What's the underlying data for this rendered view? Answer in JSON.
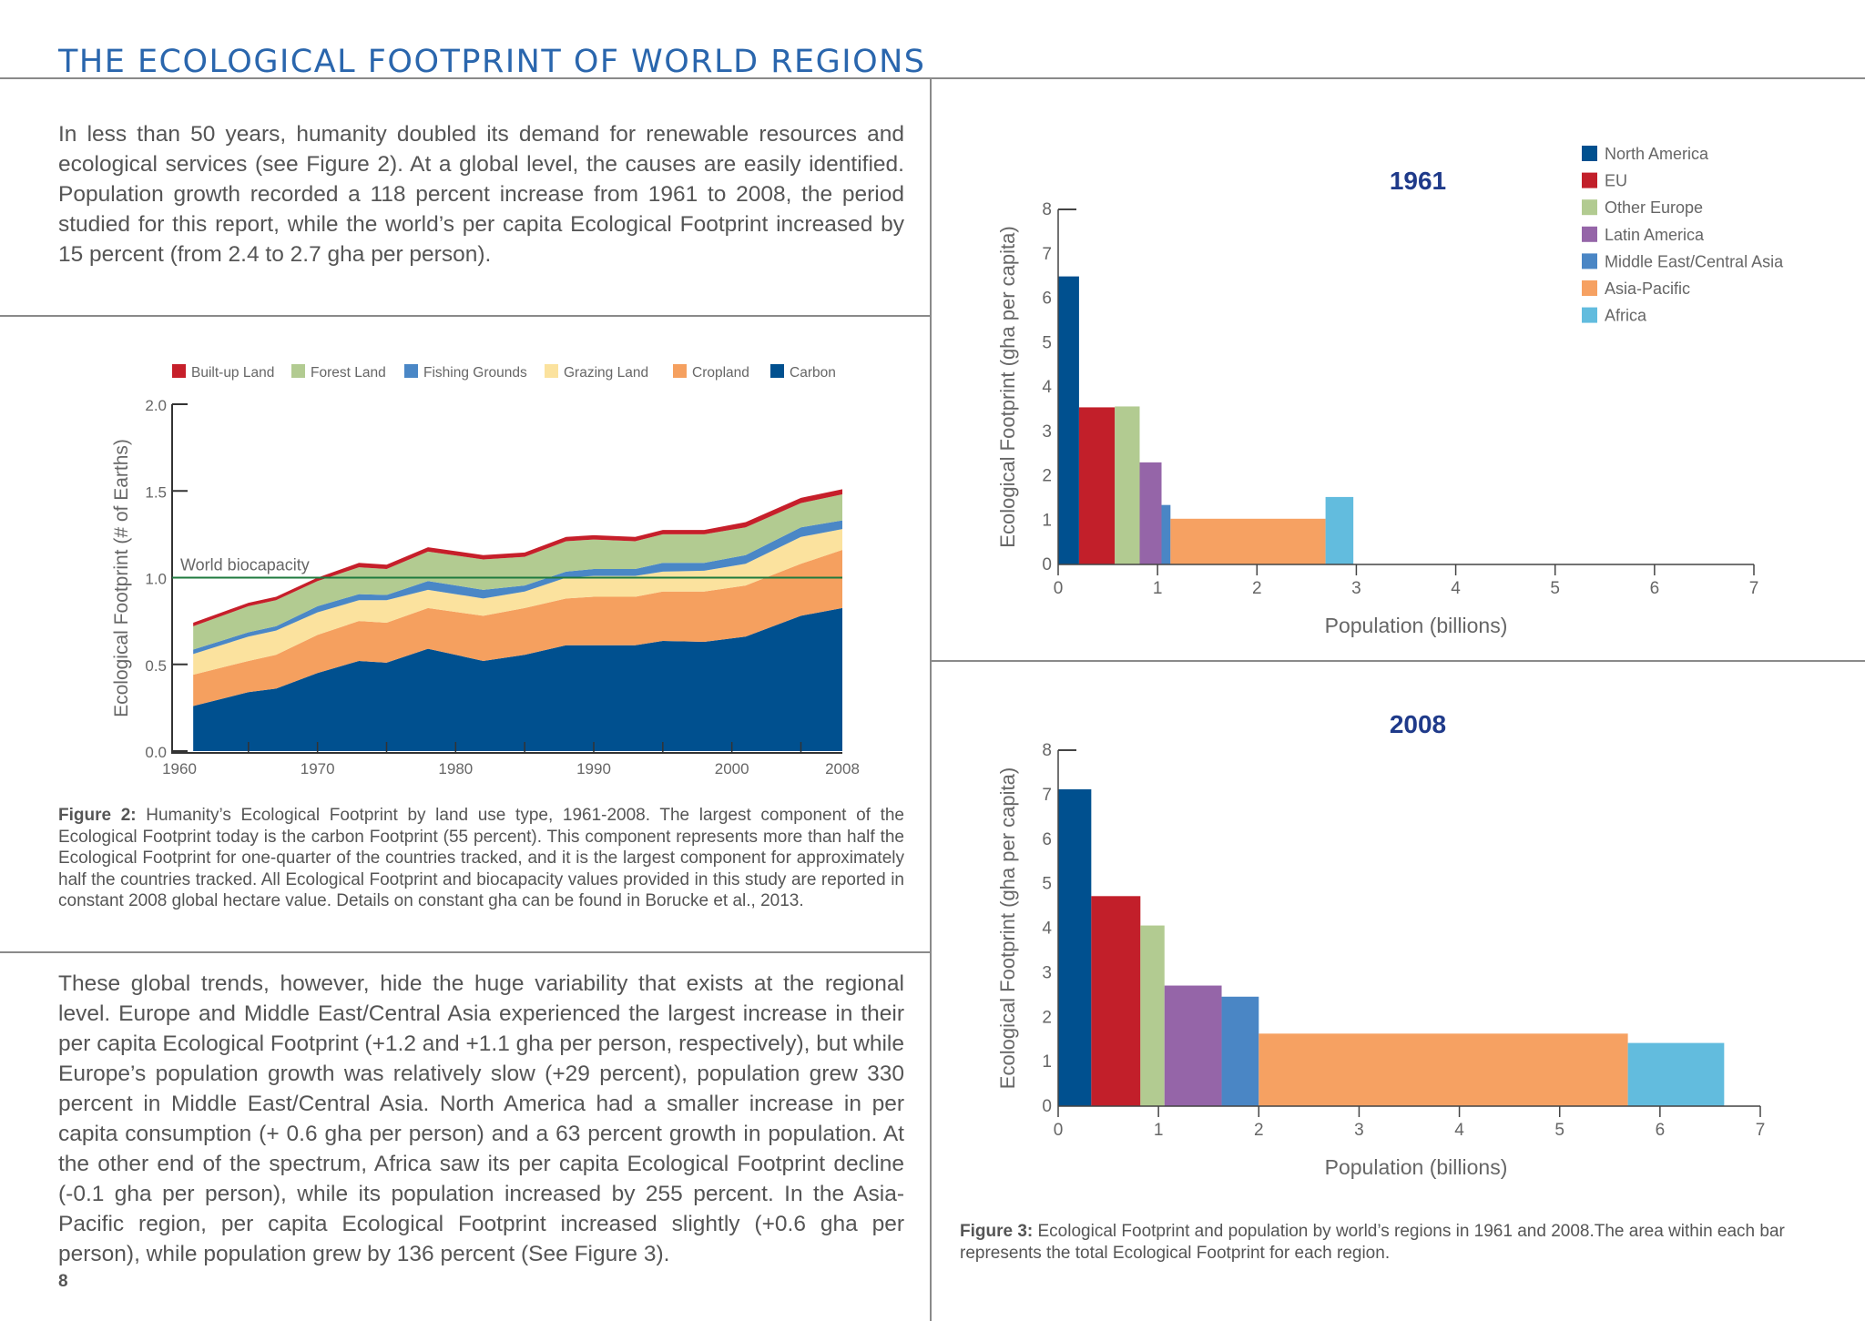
{
  "page": {
    "title": "THE ECOLOGICAL FOOTPRINT OF WORLD REGIONS",
    "page_number": "8",
    "paragraph_1": "In less than 50 years, humanity doubled its demand for renewable resources and ecological services (see Figure 2). At a global level, the causes are easily identified. Population growth recorded a 118 percent increase from 1961 to 2008, the period studied for this report, while the world’s per capita Ecological Footprint increased by 15 percent (from 2.4 to 2.7 gha per person).",
    "paragraph_2": "These global trends, however, hide the huge variability that exists at the regional level. Europe and Middle East/Central Asia experienced the largest increase in their per capita Ecological Footprint (+1.2 and +1.1 gha per person, respectively), but while Europe’s population growth was relatively slow (+29 percent), population grew 330 percent in Middle East/Central Asia. North America had a smaller increase in per capita consumption (+ 0.6 gha per person) and a 63 percent growth in population. At the other end of the spectrum, Africa saw its per capita Ecological Footprint decline (-0.1 gha per person), while its population increased by 255 percent. In the Asia-Pacific region, per capita Ecological Footprint increased slightly (+0.6 gha per person), while population grew by 136 percent (See Figure 3).",
    "figure2_caption_label": "Figure 2:",
    "figure2_caption": " Humanity’s Ecological Footprint by land use type, 1961-2008.  The largest component of the Ecological Footprint today is the carbon Footprint (55 percent). This component represents more than half the Ecological Footprint for one-quarter of the countries tracked, and it is the largest component for approximately half the countries tracked. All Ecological Footprint and biocapacity values provided in this study are reported in constant 2008 global hectare value. Details on constant gha can be found in Borucke et al., 2013.",
    "figure3_caption_label": "Figure 3:",
    "figure3_caption": " Ecological Footprint and population by world’s regions in 1961 and 2008.The area within each bar represents the total Ecological Footprint for each region.",
    "title_color": "#2a66ad"
  },
  "chart_data": [
    {
      "type": "area",
      "stacked": true,
      "xlabel": "",
      "ylabel": "Ecological Footprint (# of Earths)",
      "ylim": [
        0,
        2.0
      ],
      "xlim": [
        1960,
        2008
      ],
      "yticks": [
        "0.0",
        "0.5",
        "1.0",
        "1.5",
        "2.0"
      ],
      "xticks": [
        "1960",
        "1970",
        "1980",
        "1990",
        "2000",
        "2008"
      ],
      "legend_position": "top",
      "grid": false,
      "annotation": {
        "label": "World biocapacity",
        "y": 1.0,
        "color": "#1e7a3e"
      },
      "x": [
        1961,
        1965,
        1967,
        1970,
        1973,
        1975,
        1978,
        1982,
        1985,
        1988,
        1990,
        1993,
        1995,
        1998,
        2001,
        2005,
        2008
      ],
      "series": [
        {
          "name": "Carbon",
          "color": "#00508f",
          "values": [
            0.26,
            0.34,
            0.36,
            0.45,
            0.52,
            0.51,
            0.59,
            0.52,
            0.555,
            0.61,
            0.61,
            0.61,
            0.635,
            0.63,
            0.66,
            0.78,
            0.825
          ]
        },
        {
          "name": "Cropland",
          "color": "#f5a05f",
          "values": [
            0.18,
            0.18,
            0.195,
            0.22,
            0.23,
            0.23,
            0.235,
            0.26,
            0.27,
            0.27,
            0.28,
            0.28,
            0.285,
            0.29,
            0.295,
            0.3,
            0.335
          ]
        },
        {
          "name": "Grazing Land",
          "color": "#fbe29e",
          "values": [
            0.12,
            0.14,
            0.14,
            0.13,
            0.12,
            0.13,
            0.105,
            0.1,
            0.095,
            0.12,
            0.12,
            0.12,
            0.115,
            0.12,
            0.125,
            0.155,
            0.12
          ]
        },
        {
          "name": "Fishing Grounds",
          "color": "#4a87c6",
          "values": [
            0.025,
            0.025,
            0.025,
            0.035,
            0.035,
            0.03,
            0.05,
            0.05,
            0.035,
            0.035,
            0.04,
            0.04,
            0.05,
            0.045,
            0.05,
            0.055,
            0.05
          ]
        },
        {
          "name": "Forest Land",
          "color": "#b2cb91",
          "values": [
            0.135,
            0.15,
            0.15,
            0.145,
            0.155,
            0.15,
            0.17,
            0.175,
            0.165,
            0.175,
            0.17,
            0.16,
            0.165,
            0.165,
            0.16,
            0.14,
            0.15
          ]
        },
        {
          "name": "Built-up Land",
          "color": "#c61f2a",
          "values": [
            0.02,
            0.02,
            0.02,
            0.02,
            0.025,
            0.025,
            0.025,
            0.025,
            0.025,
            0.025,
            0.025,
            0.025,
            0.025,
            0.025,
            0.03,
            0.03,
            0.03
          ]
        }
      ],
      "legend_order": [
        "Built-up Land",
        "Forest Land",
        "Fishing Grounds",
        "Grazing Land",
        "Cropland",
        "Carbon"
      ]
    },
    {
      "type": "bar",
      "variable_width": true,
      "title": "1961",
      "xlabel": "Population (billions)",
      "ylabel": "Ecological Footprint (gha per capita)",
      "xlim": [
        0,
        7
      ],
      "ylim": [
        0,
        8
      ],
      "xticks": [
        "0",
        "1",
        "2",
        "3",
        "4",
        "5",
        "6",
        "7"
      ],
      "yticks": [
        "0",
        "1",
        "2",
        "3",
        "4",
        "5",
        "6",
        "7",
        "8"
      ],
      "legend_position": "top-right",
      "bars": [
        {
          "name": "North America",
          "color": "#00508f",
          "population": 0.21,
          "footprint": 6.49
        },
        {
          "name": "EU",
          "color": "#c21f2a",
          "population": 0.36,
          "footprint": 3.54
        },
        {
          "name": "Other Europe",
          "color": "#b2cb91",
          "population": 0.25,
          "footprint": 3.56
        },
        {
          "name": "Latin America",
          "color": "#9565a8",
          "population": 0.22,
          "footprint": 2.3
        },
        {
          "name": "Middle East/Central Asia",
          "color": "#4a86c5",
          "population": 0.09,
          "footprint": 1.34
        },
        {
          "name": "Asia-Pacific",
          "color": "#f6a162",
          "population": 1.56,
          "footprint": 1.03
        },
        {
          "name": "Africa",
          "color": "#62bcde",
          "population": 0.28,
          "footprint": 1.52
        }
      ]
    },
    {
      "type": "bar",
      "variable_width": true,
      "title": "2008",
      "xlabel": "Population (billions)",
      "ylabel": "Ecological Footprint (gha per capita)",
      "xlim": [
        0,
        7
      ],
      "ylim": [
        0,
        8
      ],
      "xticks": [
        "0",
        "1",
        "2",
        "3",
        "4",
        "5",
        "6",
        "7"
      ],
      "yticks": [
        "0",
        "1",
        "2",
        "3",
        "4",
        "5",
        "6",
        "7",
        "8"
      ],
      "bars": [
        {
          "name": "North America",
          "color": "#00508f",
          "population": 0.33,
          "footprint": 7.12
        },
        {
          "name": "EU",
          "color": "#c21f2a",
          "population": 0.49,
          "footprint": 4.72
        },
        {
          "name": "Other Europe",
          "color": "#b2cb91",
          "population": 0.24,
          "footprint": 4.06
        },
        {
          "name": "Latin America",
          "color": "#9565a8",
          "population": 0.57,
          "footprint": 2.71
        },
        {
          "name": "Middle East/Central Asia",
          "color": "#4a86c5",
          "population": 0.37,
          "footprint": 2.46
        },
        {
          "name": "Asia-Pacific",
          "color": "#f6a162",
          "population": 3.68,
          "footprint": 1.63
        },
        {
          "name": "Africa",
          "color": "#62bcde",
          "population": 0.96,
          "footprint": 1.42
        }
      ]
    }
  ]
}
